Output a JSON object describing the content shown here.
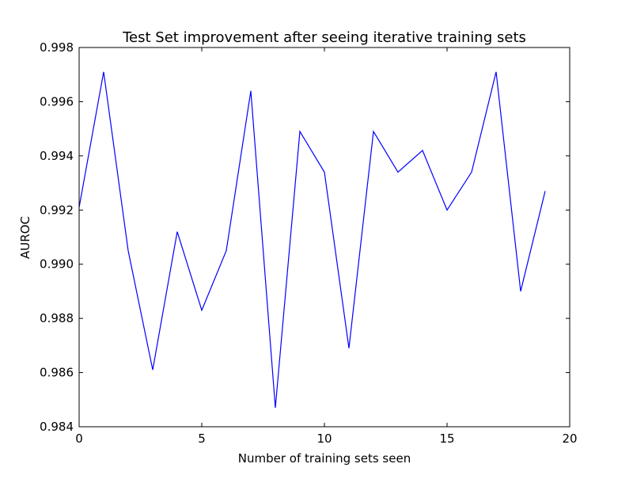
{
  "chart_data": {
    "type": "line",
    "title": "Test Set improvement after seeing iterative training sets",
    "xlabel": "Number of training sets seen",
    "ylabel": "AUROC",
    "xlim": [
      0,
      20
    ],
    "ylim": [
      0.984,
      0.998
    ],
    "xticks": [
      "0",
      "5",
      "10",
      "15",
      "20"
    ],
    "yticks": [
      "0.984",
      "0.986",
      "0.988",
      "0.990",
      "0.992",
      "0.994",
      "0.996",
      "0.998"
    ],
    "grid": false,
    "series": [
      {
        "color": "#0000ff",
        "x": [
          0,
          1,
          2,
          3,
          4,
          5,
          6,
          7,
          8,
          9,
          10,
          11,
          12,
          13,
          14,
          15,
          16,
          17,
          18,
          19
        ],
        "y": [
          0.9921,
          0.9971,
          0.9905,
          0.9861,
          0.9912,
          0.9883,
          0.9905,
          0.9964,
          0.9847,
          0.9949,
          0.9934,
          0.9869,
          0.9949,
          0.9934,
          0.9942,
          0.992,
          0.9934,
          0.9971,
          0.989,
          0.9927
        ]
      }
    ]
  }
}
